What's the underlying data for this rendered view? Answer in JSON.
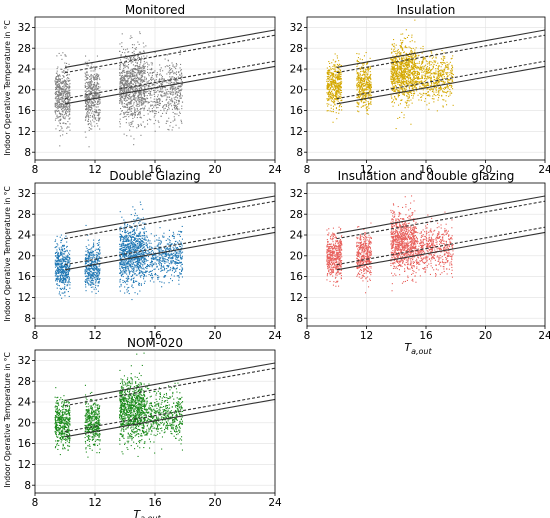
{
  "figure": {
    "ylabel": "Indoor Operative Temperature in °C",
    "xlabel": "T_a,out",
    "xlabel_main": "T",
    "xlabel_sub": "a,out"
  },
  "chart_data": [
    {
      "type": "scatter",
      "title": "Monitored",
      "color": "#808080",
      "ylabel": "Indoor Operative Temperature in °C",
      "xlabel": "",
      "xlim": [
        8,
        24
      ],
      "ylim": [
        6.5,
        34
      ],
      "xticks": [
        8,
        12,
        16,
        20,
        24
      ],
      "yticks": [
        8,
        12,
        16,
        20,
        24,
        28,
        32
      ],
      "grid": true,
      "clusters": [
        {
          "x_range": [
            9.3,
            10.3
          ],
          "y_mean": 19,
          "y_sd": 3.0,
          "n": 500
        },
        {
          "x_range": [
            11.3,
            12.3
          ],
          "y_mean": 19,
          "y_sd": 3.0,
          "n": 450
        },
        {
          "x_range": [
            13.6,
            15.3
          ],
          "y_mean": 21,
          "y_sd": 3.5,
          "n": 900
        },
        {
          "x_range": [
            15.3,
            17.8
          ],
          "y_mean": 20,
          "y_sd": 2.8,
          "n": 550
        }
      ],
      "comfort_lines": [
        {
          "style": "solid",
          "x": [
            10,
            24
          ],
          "y": [
            24.3,
            31.5
          ]
        },
        {
          "style": "dashed",
          "x": [
            10,
            24
          ],
          "y": [
            23.3,
            30.5
          ]
        },
        {
          "style": "dashed",
          "x": [
            10,
            24
          ],
          "y": [
            18.3,
            25.5
          ]
        },
        {
          "style": "solid",
          "x": [
            10,
            24
          ],
          "y": [
            17.3,
            24.5
          ]
        }
      ]
    },
    {
      "type": "scatter",
      "title": "Insulation",
      "color": "#d4a800",
      "ylabel": "",
      "xlabel": "",
      "xlim": [
        8,
        24
      ],
      "ylim": [
        6.5,
        34
      ],
      "xticks": [
        8,
        12,
        16,
        20,
        24
      ],
      "yticks": [
        8,
        12,
        16,
        20,
        24,
        28,
        32
      ],
      "grid": true,
      "clusters": [
        {
          "x_range": [
            9.3,
            10.3
          ],
          "y_mean": 21,
          "y_sd": 2.2,
          "n": 450
        },
        {
          "x_range": [
            11.3,
            12.3
          ],
          "y_mean": 21,
          "y_sd": 2.2,
          "n": 400
        },
        {
          "x_range": [
            13.6,
            15.3
          ],
          "y_mean": 23.5,
          "y_sd": 2.8,
          "n": 900
        },
        {
          "x_range": [
            15.3,
            17.8
          ],
          "y_mean": 22.5,
          "y_sd": 2.2,
          "n": 550
        }
      ],
      "comfort_lines": [
        {
          "style": "solid",
          "x": [
            10,
            24
          ],
          "y": [
            24.3,
            31.5
          ]
        },
        {
          "style": "dashed",
          "x": [
            10,
            24
          ],
          "y": [
            23.3,
            30.5
          ]
        },
        {
          "style": "dashed",
          "x": [
            10,
            24
          ],
          "y": [
            18.3,
            25.5
          ]
        },
        {
          "style": "solid",
          "x": [
            10,
            24
          ],
          "y": [
            17.3,
            24.5
          ]
        }
      ]
    },
    {
      "type": "scatter",
      "title": "Double Glazing",
      "color": "#1f77b4",
      "ylabel": "Indoor Operative Temperature in °C",
      "xlabel": "",
      "xlim": [
        8,
        24
      ],
      "ylim": [
        6.5,
        34
      ],
      "xticks": [
        8,
        12,
        16,
        20,
        24
      ],
      "yticks": [
        8,
        12,
        16,
        20,
        24,
        28,
        32
      ],
      "grid": true,
      "clusters": [
        {
          "x_range": [
            9.3,
            10.3
          ],
          "y_mean": 18,
          "y_sd": 2.2,
          "n": 450
        },
        {
          "x_range": [
            11.3,
            12.3
          ],
          "y_mean": 18,
          "y_sd": 2.2,
          "n": 400
        },
        {
          "x_range": [
            13.6,
            15.3
          ],
          "y_mean": 20.5,
          "y_sd": 3.0,
          "n": 900
        },
        {
          "x_range": [
            15.3,
            17.8
          ],
          "y_mean": 20,
          "y_sd": 2.2,
          "n": 500
        }
      ],
      "comfort_lines": [
        {
          "style": "solid",
          "x": [
            10,
            24
          ],
          "y": [
            24.3,
            31.5
          ]
        },
        {
          "style": "dashed",
          "x": [
            10,
            24
          ],
          "y": [
            23.3,
            30.5
          ]
        },
        {
          "style": "dashed",
          "x": [
            10,
            24
          ],
          "y": [
            18.3,
            25.5
          ]
        },
        {
          "style": "solid",
          "x": [
            10,
            24
          ],
          "y": [
            17.3,
            24.5
          ]
        }
      ]
    },
    {
      "type": "scatter",
      "title": "Insulation and double glazing",
      "color": "#e8605c",
      "ylabel": "",
      "xlabel": "T_a,out",
      "xlim": [
        8,
        24
      ],
      "ylim": [
        6.5,
        34
      ],
      "xticks": [
        8,
        12,
        16,
        20,
        24
      ],
      "yticks": [
        8,
        12,
        16,
        20,
        24,
        28,
        32
      ],
      "grid": true,
      "clusters": [
        {
          "x_range": [
            9.3,
            10.3
          ],
          "y_mean": 20,
          "y_sd": 2.2,
          "n": 450
        },
        {
          "x_range": [
            11.3,
            12.3
          ],
          "y_mean": 20,
          "y_sd": 2.2,
          "n": 400
        },
        {
          "x_range": [
            13.6,
            15.3
          ],
          "y_mean": 22.5,
          "y_sd": 2.8,
          "n": 900
        },
        {
          "x_range": [
            15.3,
            17.8
          ],
          "y_mean": 21.5,
          "y_sd": 2.2,
          "n": 500
        }
      ],
      "comfort_lines": [
        {
          "style": "solid",
          "x": [
            10,
            24
          ],
          "y": [
            24.3,
            31.5
          ]
        },
        {
          "style": "dashed",
          "x": [
            10,
            24
          ],
          "y": [
            23.3,
            30.5
          ]
        },
        {
          "style": "dashed",
          "x": [
            10,
            24
          ],
          "y": [
            18.3,
            25.5
          ]
        },
        {
          "style": "solid",
          "x": [
            10,
            24
          ],
          "y": [
            17.3,
            24.5
          ]
        }
      ]
    },
    {
      "type": "scatter",
      "title": "NOM-020",
      "color": "#1a8a1a",
      "ylabel": "Indoor Operative Temperature in °C",
      "xlabel": "T_a,out",
      "xlim": [
        8,
        24
      ],
      "ylim": [
        6.5,
        34
      ],
      "xticks": [
        8,
        12,
        16,
        20,
        24
      ],
      "yticks": [
        8,
        12,
        16,
        20,
        24,
        28,
        32
      ],
      "grid": true,
      "clusters": [
        {
          "x_range": [
            9.3,
            10.3
          ],
          "y_mean": 20,
          "y_sd": 2.2,
          "n": 450
        },
        {
          "x_range": [
            11.3,
            12.3
          ],
          "y_mean": 20,
          "y_sd": 2.2,
          "n": 400
        },
        {
          "x_range": [
            13.6,
            15.3
          ],
          "y_mean": 22.5,
          "y_sd": 3.0,
          "n": 900
        },
        {
          "x_range": [
            15.3,
            17.8
          ],
          "y_mean": 21.5,
          "y_sd": 2.2,
          "n": 500
        }
      ],
      "comfort_lines": [
        {
          "style": "solid",
          "x": [
            10,
            24
          ],
          "y": [
            24.3,
            31.5
          ]
        },
        {
          "style": "dashed",
          "x": [
            10,
            24
          ],
          "y": [
            23.3,
            30.5
          ]
        },
        {
          "style": "dashed",
          "x": [
            10,
            24
          ],
          "y": [
            18.3,
            25.5
          ]
        },
        {
          "style": "solid",
          "x": [
            10,
            24
          ],
          "y": [
            17.3,
            24.5
          ]
        }
      ]
    }
  ]
}
